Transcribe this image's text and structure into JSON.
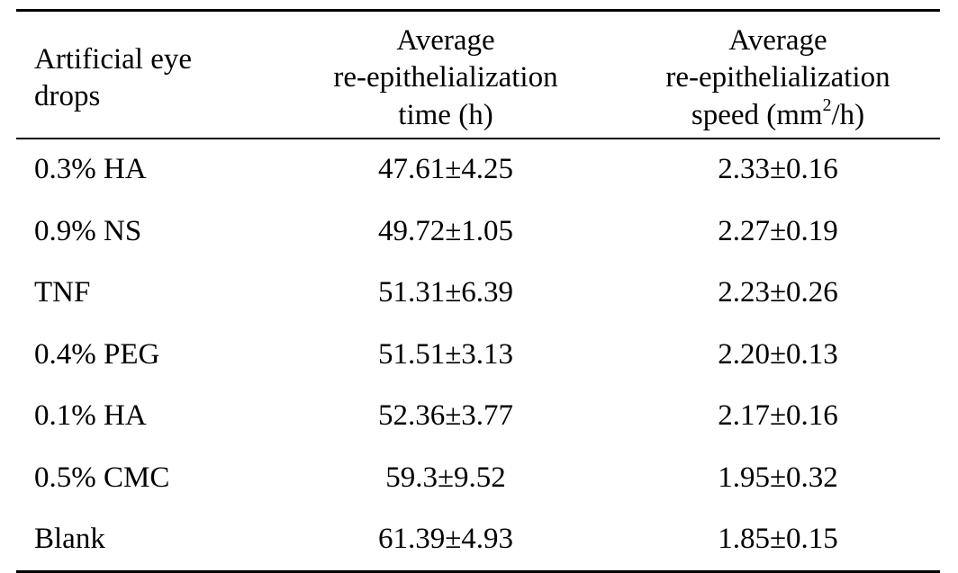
{
  "table": {
    "headers": {
      "drops_line1": "Artificial eye",
      "drops_line2": "drops",
      "time_line1": "Average",
      "time_line2": "re-epithelialization",
      "time_line3": "time (h)",
      "speed_line1": "Average",
      "speed_line2": "re-epithelialization",
      "speed_line3_pre": "speed (mm",
      "speed_line3_sup": "2",
      "speed_line3_post": "/h)"
    },
    "rows": [
      {
        "drops": "0.3% HA",
        "time": "47.61±4.25",
        "speed": "2.33±0.16"
      },
      {
        "drops": "0.9% NS",
        "time": "49.72±1.05",
        "speed": "2.27±0.19"
      },
      {
        "drops": "TNF",
        "time": "51.31±6.39",
        "speed": "2.23±0.26"
      },
      {
        "drops": "0.4% PEG",
        "time": "51.51±3.13",
        "speed": "2.20±0.13"
      },
      {
        "drops": "0.1% HA",
        "time": "52.36±3.77",
        "speed": "2.17±0.16"
      },
      {
        "drops": "0.5% CMC",
        "time": "59.3±9.52",
        "speed": "1.95±0.32"
      },
      {
        "drops": "Blank",
        "time": "61.39±4.93",
        "speed": "1.85±0.15"
      }
    ]
  }
}
